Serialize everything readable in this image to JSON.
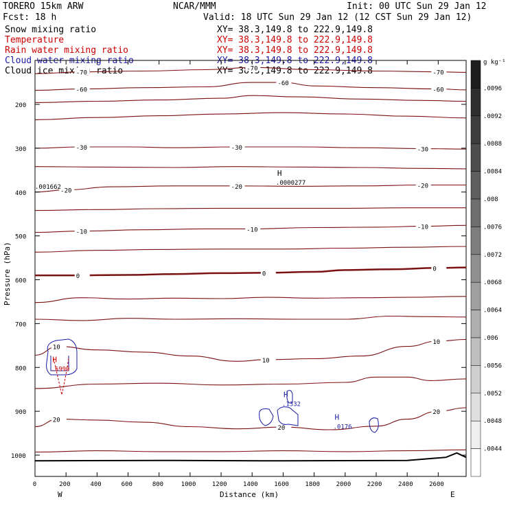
{
  "header": {
    "model": "TORERO  15km ARW",
    "org": "NCAR/MMM",
    "init": "Init: 00 UTC Sun 29 Jan 12",
    "fcst": "Fcst:   18 h",
    "valid": "Valid: 18 UTC Sun 29 Jan 12 (12 CST Sun 29 Jan 12)"
  },
  "fields": [
    {
      "name": "Snow mixing ratio",
      "xy": "",
      "color": "#000000"
    },
    {
      "name": "Temperature",
      "xy": "XY=  38.3,149.8 to 222.9,149.8",
      "color": "#cc0000"
    },
    {
      "name": "Rain water mixing ratio",
      "xy": "XY=  38.3,149.8 to 222.9,149.8",
      "color": "#cc0000"
    },
    {
      "name": "Cloud water mixing ratio",
      "xy": "XY=  38.3,149.8 to 222.9,149.8",
      "color": "#1a1aa6"
    },
    {
      "name": "Cloud ice mixing ratio",
      "xy": "XY=  38.3,149.8 to 222.9,149.8",
      "color": "#000000"
    }
  ],
  "snow_xy": "XY=  38.3,149.8 to 222.9,149.8",
  "colors": {
    "temperature": "#7a1010",
    "freezing": "#7a1010",
    "cloud_water": "#1a1aa6",
    "rain": "#cc0000",
    "ground": "#000000"
  },
  "chart_data": {
    "type": "cross-section",
    "xlabel": "Distance (km)",
    "ylabel": "Pressure (hPa)",
    "xlim": [
      0,
      2780
    ],
    "ylim_hpa": [
      1050,
      100
    ],
    "x_ticks": [
      0,
      200,
      400,
      600,
      800,
      1000,
      1200,
      1400,
      1600,
      1800,
      2000,
      2200,
      2400,
      2600
    ],
    "y_ticks": [
      200,
      300,
      400,
      500,
      600,
      700,
      800,
      900,
      1000
    ],
    "x_end_labels": {
      "left": "W",
      "right": "E"
    },
    "colorbar": {
      "unit": "g kg⁻¹",
      "ticks": [
        ".0096",
        ".0092",
        ".0088",
        ".0084",
        ".008",
        ".0076",
        ".0072",
        ".0068",
        ".0064",
        ".006",
        ".0056",
        ".0052",
        ".0048",
        ".0044"
      ]
    },
    "isotherms": [
      {
        "value": -70,
        "label": "-70",
        "points": [
          [
            0,
            130
          ],
          [
            300,
            126
          ],
          [
            700,
            124
          ],
          [
            1100,
            121
          ],
          [
            1400,
            116
          ],
          [
            1800,
            121
          ],
          [
            2200,
            124
          ],
          [
            2600,
            126
          ],
          [
            2780,
            127
          ]
        ]
      },
      {
        "value": -60,
        "label": "-60",
        "points": [
          [
            0,
            168
          ],
          [
            300,
            165
          ],
          [
            700,
            162
          ],
          [
            1100,
            160
          ],
          [
            1400,
            150
          ],
          [
            1600,
            150
          ],
          [
            1800,
            158
          ],
          [
            2200,
            162
          ],
          [
            2600,
            165
          ],
          [
            2780,
            167
          ]
        ]
      },
      {
        "value": -50,
        "label": "",
        "points": [
          [
            0,
            196
          ],
          [
            400,
            193
          ],
          [
            800,
            190
          ],
          [
            1200,
            186
          ],
          [
            1400,
            180
          ],
          [
            1700,
            183
          ],
          [
            2100,
            188
          ],
          [
            2500,
            191
          ],
          [
            2780,
            193
          ]
        ]
      },
      {
        "value": -40,
        "label": "",
        "points": [
          [
            0,
            235
          ],
          [
            400,
            230
          ],
          [
            800,
            226
          ],
          [
            1200,
            222
          ],
          [
            1600,
            219
          ],
          [
            2000,
            222
          ],
          [
            2400,
            227
          ],
          [
            2780,
            231
          ]
        ]
      },
      {
        "value": -30,
        "label": "-30",
        "points": [
          [
            0,
            300
          ],
          [
            300,
            297
          ],
          [
            600,
            297
          ],
          [
            900,
            299
          ],
          [
            1300,
            297
          ],
          [
            1700,
            297
          ],
          [
            2100,
            299
          ],
          [
            2500,
            301
          ],
          [
            2780,
            302
          ]
        ]
      },
      {
        "value": -25,
        "label": "",
        "points": [
          [
            0,
            342
          ],
          [
            400,
            343
          ],
          [
            900,
            344
          ],
          [
            1300,
            342
          ],
          [
            1700,
            343
          ],
          [
            2100,
            344
          ],
          [
            2500,
            346
          ],
          [
            2780,
            347
          ]
        ]
      },
      {
        "value": -20,
        "label": "-20",
        "points": [
          [
            0,
            400
          ],
          [
            200,
            395
          ],
          [
            500,
            388
          ],
          [
            900,
            386
          ],
          [
            1300,
            386
          ],
          [
            1700,
            387
          ],
          [
            2100,
            386
          ],
          [
            2500,
            384
          ],
          [
            2780,
            384
          ]
        ]
      },
      {
        "value": -15,
        "label": "",
        "points": [
          [
            0,
            442
          ],
          [
            400,
            440
          ],
          [
            800,
            438
          ],
          [
            1200,
            437
          ],
          [
            1600,
            437
          ],
          [
            2000,
            437
          ],
          [
            2400,
            436
          ],
          [
            2780,
            436
          ]
        ]
      },
      {
        "value": -10,
        "label": "-10",
        "points": [
          [
            0,
            492
          ],
          [
            300,
            489
          ],
          [
            700,
            486
          ],
          [
            1100,
            484
          ],
          [
            1400,
            484
          ],
          [
            1800,
            481
          ],
          [
            2200,
            480
          ],
          [
            2500,
            478
          ],
          [
            2780,
            476
          ]
        ]
      },
      {
        "value": -5,
        "label": "",
        "points": [
          [
            0,
            537
          ],
          [
            400,
            533
          ],
          [
            800,
            531
          ],
          [
            1200,
            530
          ],
          [
            1600,
            530
          ],
          [
            2000,
            528
          ],
          [
            2400,
            526
          ],
          [
            2780,
            524
          ]
        ]
      },
      {
        "value": 0,
        "label": "0",
        "points": [
          [
            0,
            590
          ],
          [
            300,
            590
          ],
          [
            600,
            589
          ],
          [
            900,
            587
          ],
          [
            1200,
            585
          ],
          [
            1500,
            584
          ],
          [
            1800,
            582
          ],
          [
            2000,
            578
          ],
          [
            2300,
            576
          ],
          [
            2600,
            573
          ],
          [
            2780,
            572
          ]
        ]
      },
      {
        "value": 3,
        "label": "",
        "points": [
          [
            0,
            652
          ],
          [
            300,
            641
          ],
          [
            600,
            644
          ],
          [
            900,
            642
          ],
          [
            1200,
            643
          ],
          [
            1500,
            640
          ],
          [
            1800,
            642
          ],
          [
            2100,
            641
          ],
          [
            2400,
            640
          ],
          [
            2780,
            638
          ]
        ]
      },
      {
        "value": 5,
        "label": "",
        "points": [
          [
            0,
            690
          ],
          [
            300,
            693
          ],
          [
            600,
            688
          ],
          [
            900,
            690
          ],
          [
            1300,
            689
          ],
          [
            1700,
            690
          ],
          [
            2000,
            690
          ],
          [
            2300,
            683
          ],
          [
            2500,
            684
          ],
          [
            2780,
            685
          ]
        ]
      },
      {
        "value": 10,
        "label": "10",
        "points": [
          [
            0,
            772
          ],
          [
            150,
            752
          ],
          [
            400,
            760
          ],
          [
            700,
            765
          ],
          [
            1000,
            774
          ],
          [
            1300,
            786
          ],
          [
            1500,
            782
          ],
          [
            1800,
            780
          ],
          [
            2100,
            774
          ],
          [
            2400,
            752
          ],
          [
            2600,
            740
          ],
          [
            2780,
            736
          ]
        ]
      },
      {
        "value": 15,
        "label": "",
        "points": [
          [
            0,
            848
          ],
          [
            400,
            838
          ],
          [
            800,
            836
          ],
          [
            1200,
            840
          ],
          [
            1600,
            838
          ],
          [
            2000,
            834
          ],
          [
            2200,
            822
          ],
          [
            2400,
            822
          ],
          [
            2550,
            830
          ],
          [
            2780,
            826
          ]
        ]
      },
      {
        "value": 20,
        "label": "20",
        "points": [
          [
            0,
            935
          ],
          [
            150,
            918
          ],
          [
            400,
            920
          ],
          [
            700,
            925
          ],
          [
            1000,
            935
          ],
          [
            1300,
            940
          ],
          [
            1600,
            936
          ],
          [
            1900,
            942
          ],
          [
            2200,
            934
          ],
          [
            2400,
            918
          ],
          [
            2600,
            900
          ],
          [
            2780,
            892
          ]
        ]
      },
      {
        "value": 25,
        "label": "",
        "points": [
          [
            0,
            993
          ],
          [
            400,
            990
          ],
          [
            800,
            992
          ],
          [
            1200,
            992
          ],
          [
            1600,
            990
          ],
          [
            2000,
            992
          ],
          [
            2400,
            990
          ],
          [
            2780,
            988
          ]
        ]
      }
    ],
    "highs": [
      {
        "label": "H",
        "value": ".0000277",
        "x": 1580,
        "p": 375
      },
      {
        "label": "H",
        "value": ".5999",
        "x": 130,
        "p": 800
      },
      {
        "label": "H",
        "value": ".1332",
        "x": 1620,
        "p": 880
      },
      {
        "label": "H",
        "value": ".0176",
        "x": 1950,
        "p": 932
      }
    ],
    "left_edge_value": ".001662",
    "ground_surface_hpa": [
      [
        0,
        1013
      ],
      [
        800,
        1012
      ],
      [
        1600,
        1013
      ],
      [
        2400,
        1012
      ],
      [
        2650,
        1005
      ],
      [
        2720,
        995
      ],
      [
        2780,
        1005
      ]
    ]
  }
}
